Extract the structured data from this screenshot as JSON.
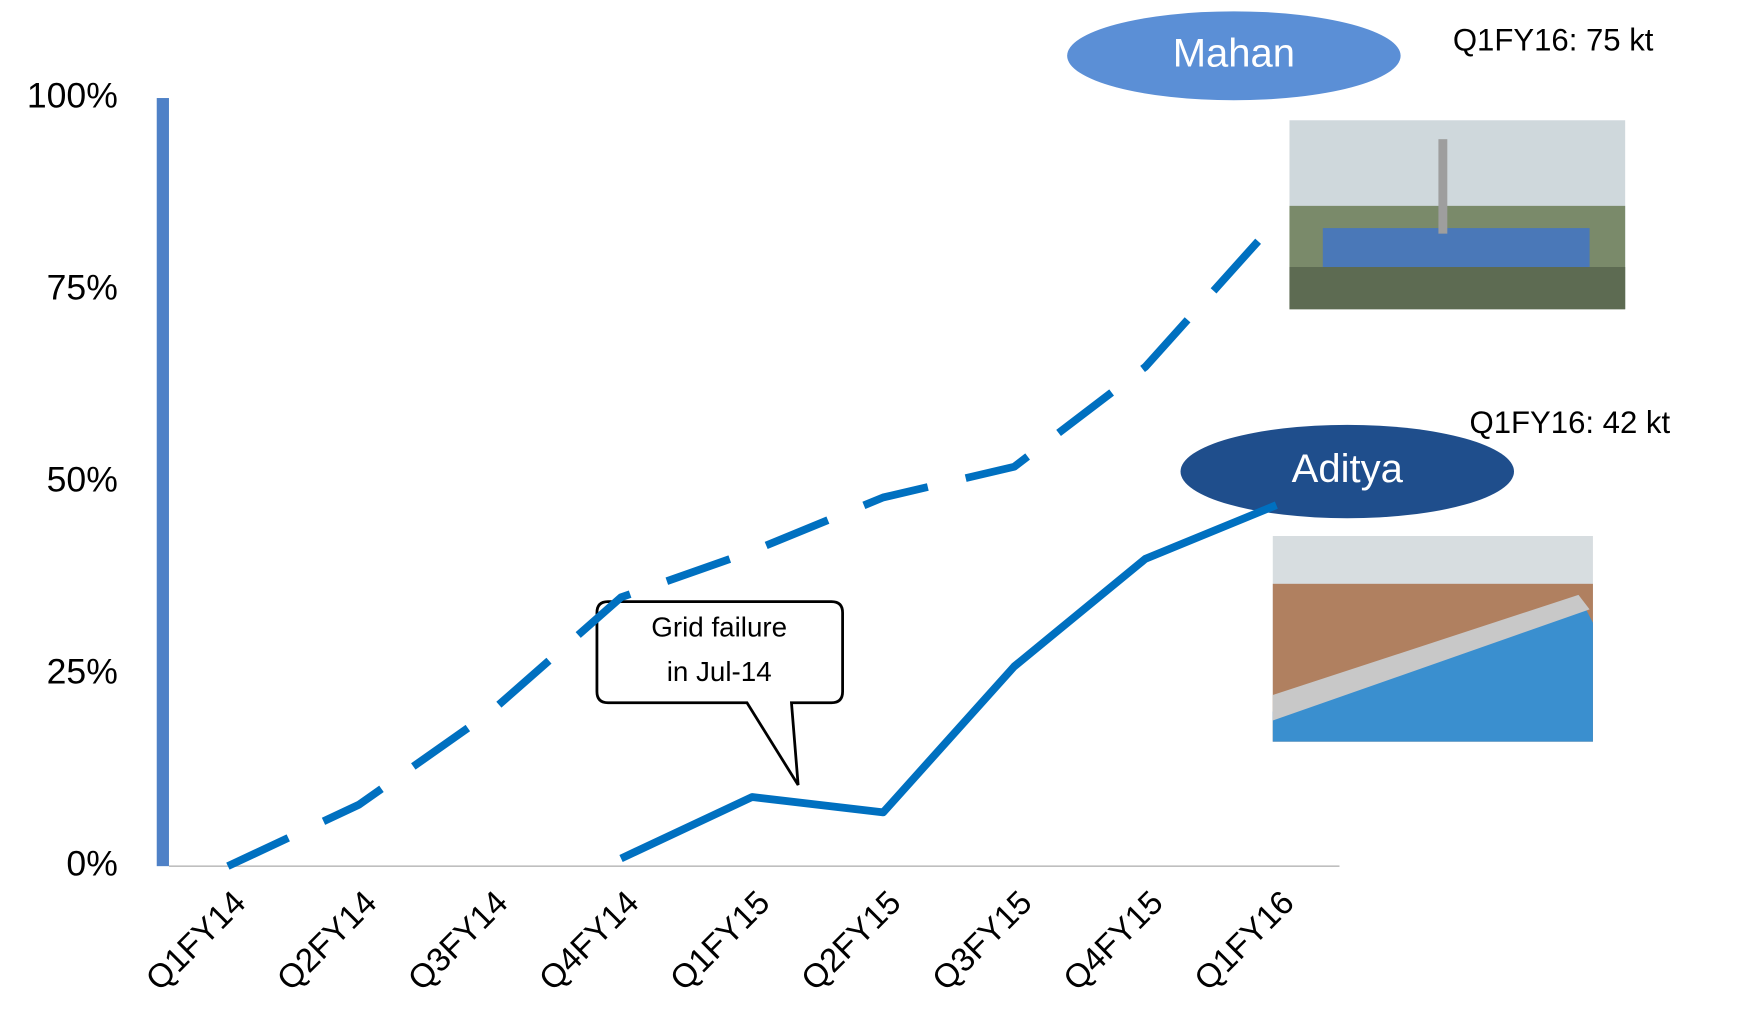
{
  "chart_data": {
    "type": "line",
    "categories": [
      "Q1FY14",
      "Q2FY14",
      "Q3FY14",
      "Q4FY14",
      "Q1FY15",
      "Q2FY15",
      "Q3FY15",
      "Q4FY15",
      "Q1FY16"
    ],
    "series": [
      {
        "name": "Mahan",
        "color": "#0070c0",
        "line_style": "dashed",
        "badge_color": "#5b8fd6",
        "note": "Q1FY16: 75 kt",
        "values": [
          0,
          8,
          20,
          35,
          41,
          48,
          52,
          65,
          84
        ]
      },
      {
        "name": "Aditya",
        "color": "#0070c0",
        "line_style": "solid",
        "badge_color": "#1f4e8c",
        "note": "Q1FY16: 42 kt",
        "values": [
          null,
          null,
          null,
          1,
          9,
          7,
          26,
          40,
          47
        ]
      }
    ],
    "annotation": [
      "Grid failure",
      "in Jul-14"
    ],
    "ylim": [
      0,
      100
    ],
    "yticks": [
      {
        "value": 0,
        "label": "0%"
      },
      {
        "value": 25,
        "label": "25%"
      },
      {
        "value": 50,
        "label": "50%"
      },
      {
        "value": 75,
        "label": "75%"
      },
      {
        "value": 100,
        "label": "100%"
      }
    ]
  }
}
